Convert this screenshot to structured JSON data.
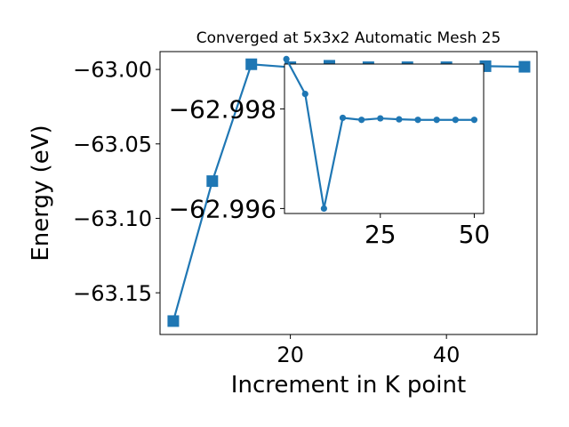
{
  "chart_data": [
    {
      "type": "line",
      "title": "Converged at 5x3x2 Automatic Mesh 25",
      "xlabel": "Increment in K point",
      "ylabel": "Energy (eV)",
      "xlim": [
        3.3,
        51.6
      ],
      "ylim": [
        -63.178,
        -62.988
      ],
      "x_ticks": [
        20,
        40
      ],
      "y_ticks": [
        -63.15,
        -63.1,
        -63.05,
        -63.0
      ],
      "y_tick_labels": [
        "−63.15",
        "−63.10",
        "−63.05",
        "−63.00"
      ],
      "grid": false,
      "legend": "none",
      "color": "#1f77b4",
      "marker": "square",
      "series": [
        {
          "x": [
            5,
            10,
            15,
            20,
            25,
            30,
            35,
            40,
            45,
            50
          ],
          "y": [
            -63.169,
            -63.075,
            -62.9965,
            -62.9985,
            -62.9975,
            -62.9985,
            -62.9985,
            -62.9985,
            -62.9978,
            -62.9982
          ]
        }
      ]
    },
    {
      "type": "line",
      "title": "",
      "xlabel": "",
      "ylabel": "",
      "xlim": [
        -0.5,
        52.5
      ],
      "ylim": [
        -62.9959,
        -62.9989
      ],
      "x_ticks": [
        25,
        50
      ],
      "y_ticks": [
        -62.998,
        -62.996
      ],
      "y_tick_labels": [
        "−62.998",
        "−62.996"
      ],
      "grid": false,
      "legend": "none",
      "color": "#1f77b4",
      "marker": "circle",
      "series": [
        {
          "x": [
            0,
            5,
            10,
            15,
            20,
            25,
            30,
            35,
            40,
            45,
            50
          ],
          "y": [
            -62.999,
            -62.9983,
            -62.996,
            -62.99782,
            -62.99778,
            -62.99781,
            -62.99779,
            -62.99778,
            -62.99778,
            -62.99778,
            -62.99778
          ]
        }
      ]
    }
  ]
}
